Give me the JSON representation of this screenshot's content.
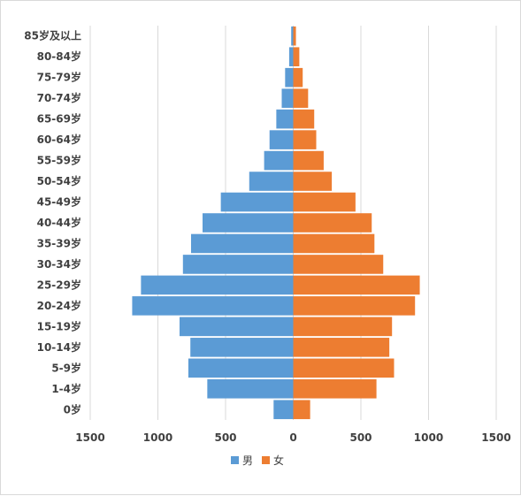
{
  "chart_data": {
    "type": "bar",
    "orientation": "horizontal",
    "categories": [
      "0岁",
      "1-4岁",
      "5-9岁",
      "10-14岁",
      "15-19岁",
      "20-24岁",
      "25-29岁",
      "30-34岁",
      "35-39岁",
      "40-44岁",
      "45-49岁",
      "50-54岁",
      "55-59岁",
      "60-64岁",
      "65-69岁",
      "70-74岁",
      "75-79岁",
      "80-84岁",
      "85岁及以上"
    ],
    "series": [
      {
        "name": "男",
        "color": "#5b9bd5",
        "values": [
          -145,
          -635,
          -775,
          -760,
          -840,
          -1190,
          -1125,
          -815,
          -755,
          -670,
          -535,
          -325,
          -215,
          -175,
          -125,
          -85,
          -60,
          -30,
          -15
        ]
      },
      {
        "name": "女",
        "color": "#ed7d31",
        "values": [
          125,
          615,
          745,
          710,
          730,
          900,
          935,
          665,
          600,
          580,
          460,
          285,
          225,
          170,
          155,
          110,
          70,
          45,
          20
        ]
      }
    ],
    "xlim": [
      -1500,
      1500
    ],
    "x_ticks": [
      -1500,
      -1000,
      -500,
      0,
      500,
      1000,
      1500
    ],
    "x_tick_labels": [
      "1500",
      "1000",
      "500",
      "0",
      "500",
      "1000",
      "1500"
    ],
    "grid": true,
    "legend": "bottom"
  }
}
